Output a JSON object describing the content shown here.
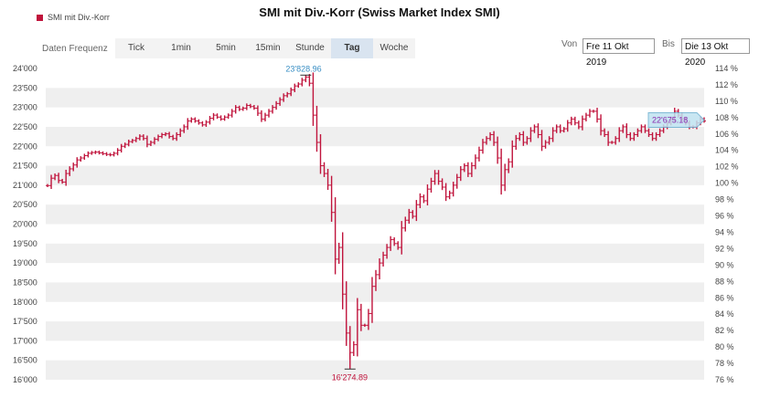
{
  "legend": {
    "label": "SMI mit Div.-Korr",
    "color": "#c0143c"
  },
  "title": "SMI mit Div.-Korr (Swiss Market Index SMI)",
  "toolbar": {
    "label": "Daten Frequenz",
    "tabs": [
      "Tick",
      "1min",
      "5min",
      "15min",
      "Stunde",
      "Tag",
      "Woche"
    ],
    "active": "Tag"
  },
  "range": {
    "from_label": "Von",
    "from_value": "Fre 11 Okt 2019",
    "to_label": "Bis",
    "to_value": "Die 13 Okt 2020"
  },
  "chart_data": {
    "type": "ohlc",
    "series": [
      {
        "name": "SMI mit Div.-Korr",
        "color": "#c0143c"
      }
    ],
    "ylim": [
      16000,
      24000
    ],
    "y_ticks": [
      "24'000",
      "23'500",
      "23'000",
      "22'500",
      "22'000",
      "21'500",
      "21'000",
      "20'500",
      "20'000",
      "19'500",
      "19'000",
      "18'500",
      "18'000",
      "17'500",
      "17'000",
      "16'500",
      "16'000"
    ],
    "right_ticks": [
      "114 %",
      "112 %",
      "110 %",
      "108 %",
      "106 %",
      "104 %",
      "102 %",
      "100 %",
      "98 %",
      "96 %",
      "94 %",
      "92 %",
      "90 %",
      "88 %",
      "86 %",
      "84 %",
      "82 %",
      "80 %",
      "78 %",
      "76 %"
    ],
    "right_ylim": [
      76,
      114
    ],
    "grid": true,
    "annotations": {
      "high": "23'828.96",
      "low": "16'274.89",
      "last": "22'675.18"
    },
    "closes": [
      20990,
      21180,
      21250,
      21120,
      21080,
      21300,
      21420,
      21520,
      21650,
      21700,
      21760,
      21820,
      21840,
      21850,
      21830,
      21810,
      21790,
      21780,
      21820,
      21900,
      22000,
      22050,
      22120,
      22150,
      22200,
      22260,
      22200,
      22050,
      22100,
      22180,
      22250,
      22300,
      22320,
      22250,
      22200,
      22300,
      22400,
      22500,
      22650,
      22700,
      22650,
      22600,
      22550,
      22620,
      22720,
      22800,
      22750,
      22700,
      22750,
      22800,
      22900,
      23000,
      22950,
      22980,
      23050,
      23020,
      22980,
      22850,
      22700,
      22800,
      22900,
      23000,
      23100,
      23200,
      23300,
      23350,
      23450,
      23550,
      23600,
      23700,
      23780,
      23620,
      22800,
      22100,
      21500,
      21300,
      21000,
      20300,
      19100,
      19400,
      18200,
      17200,
      16700,
      16900,
      17800,
      17400,
      17400,
      17700,
      18400,
      18700,
      19000,
      19200,
      19400,
      19600,
      19500,
      19400,
      19900,
      20100,
      20300,
      20200,
      20500,
      20700,
      20600,
      20900,
      21100,
      21300,
      21100,
      20950,
      20700,
      20800,
      21000,
      21200,
      21400,
      21500,
      21300,
      21500,
      21700,
      21900,
      22100,
      22200,
      22300,
      22100,
      21700,
      21000,
      21400,
      21600,
      22000,
      22200,
      22300,
      22100,
      22200,
      22400,
      22500,
      22300,
      22000,
      22100,
      22200,
      22400,
      22500,
      22400,
      22450,
      22600,
      22700,
      22600,
      22500,
      22700,
      22800,
      22900,
      22900,
      22700,
      22400,
      22300,
      22100,
      22100,
      22200,
      22400,
      22500,
      22300,
      22200,
      22300,
      22400,
      22500,
      22400,
      22300,
      22200,
      22300,
      22400,
      22500,
      22600,
      22700,
      22900,
      22800,
      22700,
      22600,
      22500,
      22500,
      22600,
      22700,
      22650
    ]
  }
}
